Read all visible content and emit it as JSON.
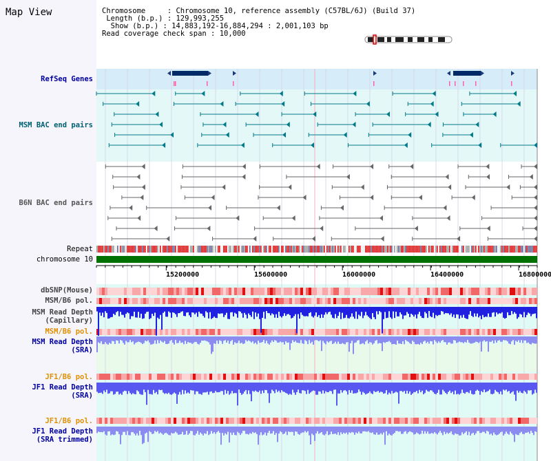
{
  "view": {
    "title": "Map View",
    "info": {
      "chromosome_key": "Chromosome",
      "chromosome_value": "Chromosome 10, reference assembly (C57BL/6J) (Build 37)",
      "length_key": "Length (b.p.)",
      "length_value": "129,993,255",
      "show_key": "Show (b.p.)",
      "show_value": "14,883,192-16,884,294 : 2,001,103 bp",
      "coverage_key": "Read coverage check span",
      "coverage_value": "10,000"
    }
  },
  "tracks": {
    "refseq": "RefSeq Genes",
    "msm_bac": "MSM BAC end pairs",
    "b6n_bac": "B6N BAC end pairs",
    "repeat": "Repeat",
    "chromosome": "chromosome 10",
    "dbsnp": "dbSNP(Mouse)",
    "msm_b6_pol": "MSM/B6 pol.",
    "msm_depth_cap_1": "MSM Read Depth",
    "msm_depth_cap_2": "(Capillary)",
    "msm_b6_pol_2": "MSM/B6 pol.",
    "msm_depth_sra_1": "MSM Read Depth",
    "msm_depth_sra_2": "(SRA)",
    "jf1_b6_pol": "JF1/B6 pol.",
    "jf1_depth_sra_1": "JF1 Read Depth",
    "jf1_depth_sra_2": "(SRA)",
    "jf1_b6_pol_2": "JF1/B6 pol.",
    "jf1_depth_trim_1": "JF1 Read Depth",
    "jf1_depth_trim_2": "(SRA trimmed)"
  },
  "axis": {
    "range": [
      14883192,
      16884294
    ],
    "ticks": [
      "15200000",
      "15600000",
      "16000000",
      "16400000",
      "16800000"
    ],
    "tick_values": [
      15200000,
      15600000,
      16000000,
      16400000,
      16800000
    ]
  },
  "colors": {
    "refseq_bg": "#d6ecf8",
    "msm_bac_bg": "#e4f8f8",
    "msm_bac": "#007a8a",
    "b6n_bac": "#666666",
    "chromosome": "#007000",
    "depth_bar": "#5858f0",
    "depth_dark": "#2020e0",
    "pol_high": "#e82828",
    "pol_low": "#ffd8d8",
    "label_blue": "#0000a0",
    "label_orange": "#e09000",
    "label_teal": "#006070"
  }
}
